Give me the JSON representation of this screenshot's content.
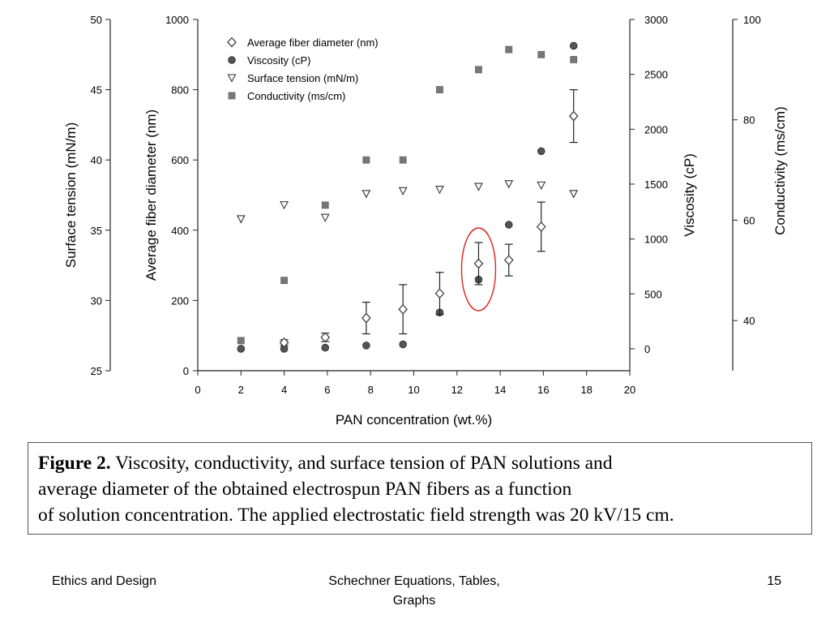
{
  "chart_data": {
    "type": "scatter",
    "x_axis": {
      "label": "PAN concentration (wt.%)",
      "range": [
        0,
        20
      ],
      "ticks": [
        0,
        2,
        4,
        6,
        8,
        10,
        12,
        14,
        16,
        18,
        20
      ]
    },
    "axes": {
      "surface_tension": {
        "label": "Surface tension (mN/m)",
        "range": [
          25,
          50
        ],
        "ticks": [
          25,
          30,
          35,
          40,
          45,
          50
        ]
      },
      "fiber_diameter": {
        "label": "Average fiber diameter (nm)",
        "range": [
          0,
          1000
        ],
        "ticks": [
          0,
          200,
          400,
          600,
          800,
          1000
        ]
      },
      "viscosity": {
        "label": "Viscosity (cP)",
        "range": [
          -200,
          3000
        ],
        "ticks": [
          0,
          500,
          1000,
          1500,
          2000,
          2500,
          3000
        ]
      },
      "conductivity": {
        "label": "Conductivity (ms/cm)",
        "range": [
          30,
          100
        ],
        "ticks": [
          40,
          60,
          80,
          100
        ]
      }
    },
    "legend_position": "top-left",
    "grid": false,
    "series": [
      {
        "name": "Average fiber diameter (nm)",
        "axis": "fiber_diameter",
        "marker": "diamond",
        "x": [
          4.0,
          5.9,
          7.8,
          9.5,
          11.2,
          13.0,
          14.4,
          15.9,
          17.4
        ],
        "y": [
          80,
          95,
          150,
          175,
          220,
          305,
          315,
          410,
          725
        ],
        "err": [
          8,
          12,
          45,
          70,
          60,
          60,
          45,
          70,
          75
        ]
      },
      {
        "name": "Viscosity (cP)",
        "axis": "viscosity",
        "marker": "circle",
        "x": [
          2.0,
          4.0,
          5.9,
          7.8,
          9.5,
          11.2,
          13.0,
          14.4,
          15.9,
          17.4
        ],
        "y": [
          0,
          0,
          10,
          30,
          40,
          330,
          630,
          1130,
          1800,
          2760
        ]
      },
      {
        "name": "Surface tension (mN/m)",
        "axis": "surface_tension",
        "marker": "triangle-down",
        "x": [
          2.0,
          4.0,
          5.9,
          7.8,
          9.5,
          11.2,
          13.0,
          14.4,
          15.9,
          17.4
        ],
        "y": [
          35.8,
          36.8,
          35.9,
          37.6,
          37.8,
          37.9,
          38.1,
          38.3,
          38.2,
          37.6
        ]
      },
      {
        "name": "Conductivity (ms/cm)",
        "axis": "conductivity",
        "marker": "square",
        "x": [
          2.0,
          4.0,
          5.9,
          7.8,
          9.5,
          11.2,
          13.0,
          14.4,
          15.9,
          17.4
        ],
        "y": [
          36,
          48,
          63,
          72,
          72,
          86,
          90,
          94,
          93,
          92
        ]
      }
    ],
    "highlight": {
      "x": 13.0,
      "shape": "ellipse",
      "color": "#d9261c"
    }
  },
  "caption": {
    "label": "Figure 2.",
    "line1": " Viscosity, conductivity, and surface tension of PAN solutions and",
    "line2": "average diameter of the obtained electrospun PAN fibers as a function",
    "line3": "of solution concentration. The applied electrostatic field strength was 20 kV/15 cm."
  },
  "footer": {
    "left": "Ethics and Design",
    "center_line1": "Schechner  Equations, Tables,",
    "center_line2": "Graphs",
    "page_number": "15"
  }
}
